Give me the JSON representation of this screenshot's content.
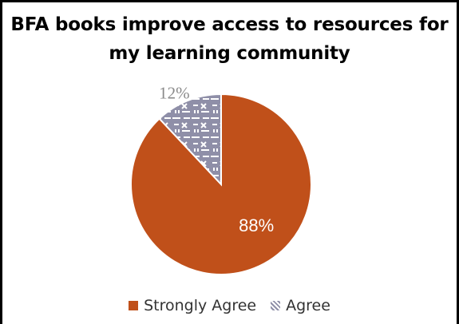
{
  "chart_data": {
    "type": "pie",
    "title": "BFA books improve access to resources for my learning community",
    "slices": [
      {
        "label": "Strongly Agree",
        "value": 88,
        "display": "88%",
        "color": "#c0501a"
      },
      {
        "label": "Agree",
        "value": 12,
        "display": "12%",
        "color": "#8f8fa8"
      }
    ],
    "legend": {
      "position": "bottom",
      "items": [
        "Strongly Agree",
        "Agree"
      ]
    },
    "start_angle_deg": 0,
    "direction": "clockwise"
  }
}
